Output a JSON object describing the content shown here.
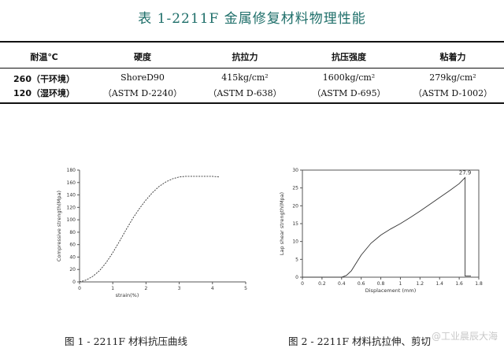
{
  "title": "表 1-2211F 金属修复材料物理性能",
  "table": {
    "headers": [
      "耐温℃",
      "硬度",
      "抗拉力",
      "抗压强度",
      "粘着力"
    ],
    "rows": [
      [
        "260（干环境）",
        "ShoreD90",
        "415kg/cm²",
        "1600kg/cm²",
        "279kg/cm²"
      ],
      [
        "120（湿环境）",
        "（ASTM D-2240）",
        "（ASTM D-638）",
        "（ASTM D-695）",
        "（ASTM D-1002）"
      ]
    ]
  },
  "chart_data": [
    {
      "type": "line",
      "xlabel": "strain(%)",
      "ylabel": "Compressive strength(Mpa)",
      "xlim": [
        0,
        5
      ],
      "ylim": [
        0,
        180
      ],
      "x_ticks": [
        0,
        1,
        2,
        3,
        4,
        5
      ],
      "y_ticks": [
        0,
        20,
        40,
        60,
        80,
        100,
        120,
        140,
        160,
        180
      ],
      "series": [
        {
          "x": [
            0.0,
            0.2,
            0.4,
            0.6,
            0.8,
            1.0,
            1.2,
            1.4,
            1.6,
            1.8,
            2.0,
            2.2,
            2.4,
            2.6,
            2.8,
            3.0,
            3.2,
            3.4,
            3.6,
            3.8,
            4.0,
            4.2
          ],
          "y": [
            0,
            3,
            9,
            18,
            31,
            47,
            65,
            84,
            102,
            118,
            132,
            144,
            154,
            161,
            166,
            169,
            170,
            170,
            170,
            170,
            170,
            169
          ]
        }
      ]
    },
    {
      "type": "line",
      "xlabel": "Displacement (mm)",
      "ylabel": "Lap shear strength(Mpa)",
      "xlim": [
        0,
        1.8
      ],
      "ylim": [
        0,
        30
      ],
      "x_ticks": [
        0.0,
        0.2,
        0.4,
        0.6,
        0.8,
        1.0,
        1.2,
        1.4,
        1.6,
        1.8
      ],
      "y_ticks": [
        0,
        5,
        10,
        15,
        20,
        25,
        30
      ],
      "annotations": [
        {
          "text": "27.9",
          "x": 1.66,
          "y": 27.9
        }
      ],
      "series": [
        {
          "x": [
            0.0,
            0.4,
            0.45,
            0.5,
            0.55,
            0.6,
            0.7,
            0.8,
            0.9,
            1.0,
            1.1,
            1.2,
            1.3,
            1.4,
            1.5,
            1.6,
            1.66,
            1.66,
            1.68,
            1.72
          ],
          "y": [
            0,
            0,
            0.5,
            1.8,
            4.0,
            6.2,
            9.5,
            11.8,
            13.5,
            15.0,
            16.7,
            18.5,
            20.4,
            22.3,
            24.2,
            26.2,
            27.9,
            0.3,
            0.3,
            0.3
          ]
        }
      ]
    }
  ],
  "captions": [
    "图 1 - 2211F 材料抗压曲线",
    "图 2 - 2211F 材料抗拉伸、剪切"
  ],
  "watermark": "@工业晨辰大海"
}
